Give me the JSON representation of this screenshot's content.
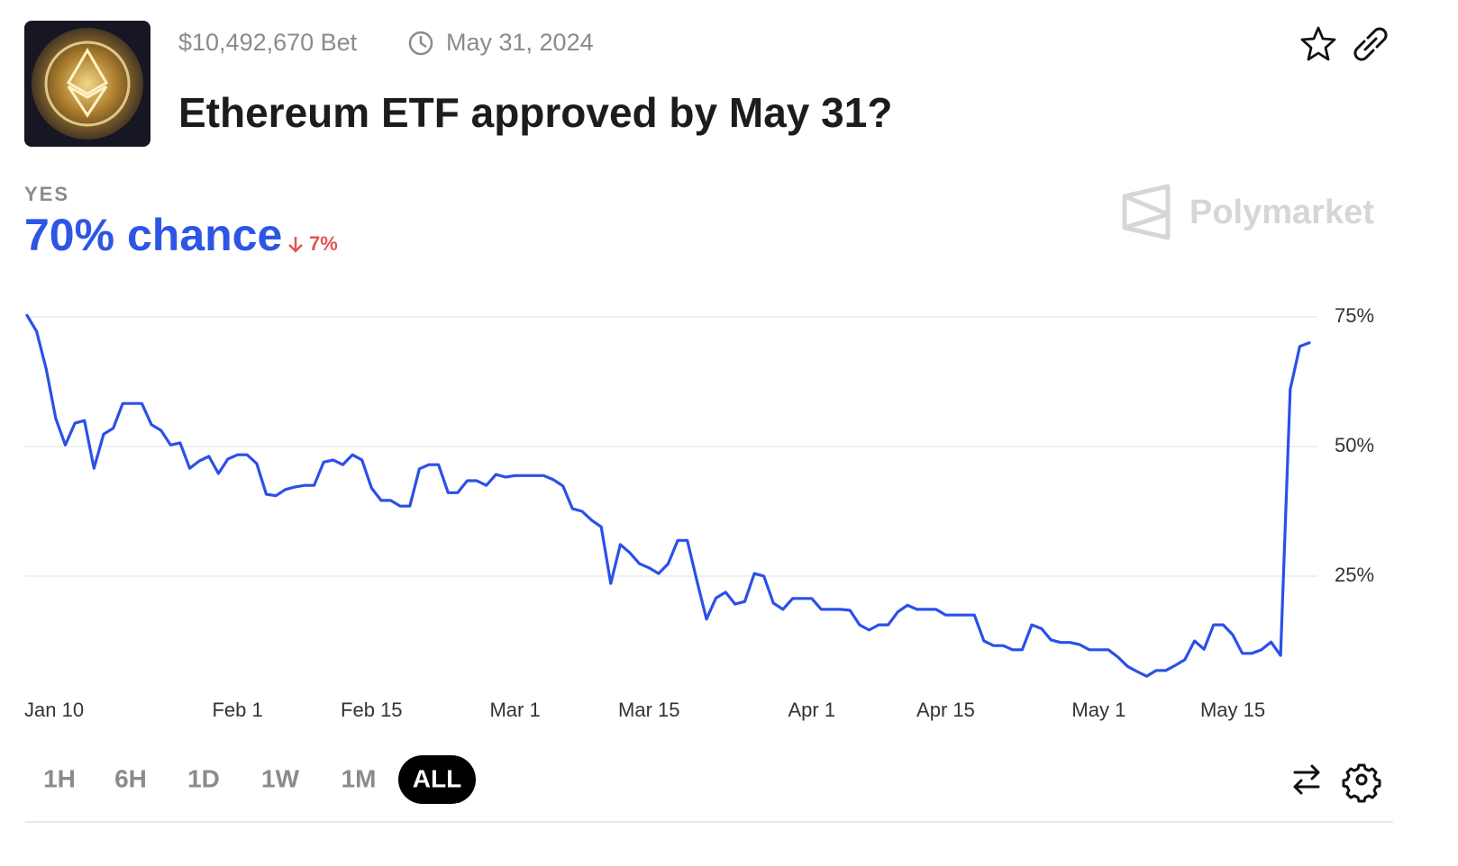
{
  "header": {
    "volume": "$10,492,670 Bet",
    "end_date": "May 31, 2024",
    "title": "Ethereum ETF approved by May 31?"
  },
  "outcome": {
    "label": "YES",
    "chance": "70% chance",
    "change": "7%"
  },
  "brand": "Polymarket",
  "range_buttons": [
    {
      "label": "1H",
      "active": false
    },
    {
      "label": "6H",
      "active": false
    },
    {
      "label": "1D",
      "active": false
    },
    {
      "label": "1W",
      "active": false
    },
    {
      "label": "1M",
      "active": false
    },
    {
      "label": "ALL",
      "active": true
    }
  ],
  "chart_data": {
    "type": "line",
    "color": "#2b50e8",
    "grid": true,
    "ylim": [
      0,
      75
    ],
    "yticks": [
      {
        "value": 25,
        "label": "25%"
      },
      {
        "value": 50,
        "label": "50%"
      },
      {
        "value": 75,
        "label": "75%"
      }
    ],
    "categories": [
      "Jan 10",
      null,
      null,
      null,
      null,
      null,
      null,
      null,
      null,
      null,
      null,
      null,
      null,
      null,
      null,
      null,
      null,
      null,
      null,
      null,
      null,
      null,
      "Feb 1",
      null,
      null,
      null,
      null,
      null,
      null,
      null,
      null,
      null,
      null,
      null,
      null,
      null,
      "Feb 15",
      null,
      null,
      null,
      null,
      null,
      null,
      null,
      null,
      null,
      null,
      null,
      null,
      null,
      null,
      "Mar 1",
      null,
      null,
      null,
      null,
      null,
      null,
      null,
      null,
      null,
      null,
      null,
      null,
      null,
      "Mar 15",
      null,
      null,
      null,
      null,
      null,
      null,
      null,
      null,
      null,
      null,
      null,
      null,
      null,
      null,
      null,
      null,
      "Apr 1",
      null,
      null,
      null,
      null,
      null,
      null,
      null,
      null,
      null,
      null,
      null,
      null,
      null,
      "Apr 15",
      null,
      null,
      null,
      null,
      null,
      null,
      null,
      null,
      null,
      null,
      null,
      null,
      null,
      null,
      null,
      "May 1",
      null,
      null,
      null,
      null,
      null,
      null,
      null,
      null,
      null,
      null,
      null,
      null,
      null,
      "May 15",
      null,
      null,
      null,
      null,
      null,
      null,
      null,
      null
    ],
    "values": [
      75.3,
      72.2,
      65,
      55.4,
      50.3,
      54.5,
      55,
      45.8,
      52.4,
      53.5,
      58.3,
      58.3,
      58.3,
      54.2,
      53.1,
      50.3,
      50.7,
      45.8,
      47.2,
      48.1,
      44.8,
      47.6,
      48.4,
      48.4,
      46.7,
      40.8,
      40.5,
      41.7,
      42.2,
      42.5,
      42.5,
      47,
      47.4,
      46.5,
      48.4,
      47.4,
      42,
      39.6,
      39.6,
      38.5,
      38.5,
      45.7,
      46.5,
      46.5,
      41.1,
      41.1,
      43.4,
      43.4,
      42.5,
      44.6,
      44.1,
      44.4,
      44.4,
      44.4,
      44.4,
      43.6,
      42.4,
      38,
      37.5,
      35.8,
      34.5,
      23.6,
      31.1,
      29.5,
      27.4,
      26.6,
      25.5,
      27.4,
      31.9,
      31.9,
      24.1,
      16.7,
      20.8,
      21.9,
      19.6,
      20.1,
      25.5,
      25,
      19.8,
      18.6,
      20.7,
      20.7,
      20.7,
      18.6,
      18.6,
      18.6,
      18.4,
      15.6,
      14.6,
      15.6,
      15.6,
      18.1,
      19.4,
      18.6,
      18.6,
      18.6,
      17.5,
      17.5,
      17.5,
      17.5,
      12.5,
      11.6,
      11.6,
      10.8,
      10.8,
      15.6,
      14.9,
      12.7,
      12.2,
      12.2,
      11.8,
      10.8,
      10.8,
      10.8,
      9.4,
      7.6,
      6.6,
      5.7,
      6.8,
      6.8,
      7.8,
      8.9,
      12.5,
      10.9,
      15.6,
      15.6,
      13.7,
      10.1,
      10.1,
      10.8,
      12.3,
      9.7,
      61,
      69.3,
      70
    ]
  }
}
